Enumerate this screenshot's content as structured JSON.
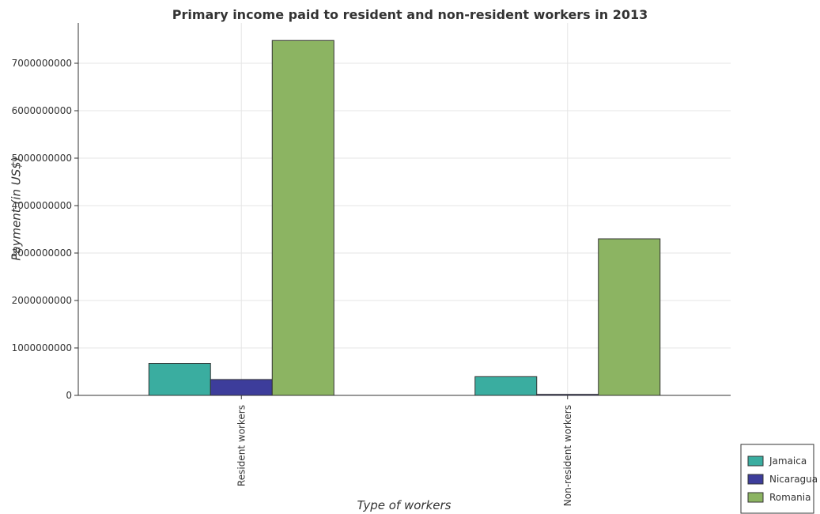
{
  "chart_data": {
    "type": "bar",
    "title": "Primary income paid to resident and non-resident workers in 2013",
    "xlabel": "Type of workers",
    "ylabel": "Payment (in US$)",
    "categories": [
      "Resident workers",
      "Non-resident workers"
    ],
    "series": [
      {
        "name": "Jamaica",
        "color": "#3aada0",
        "values": [
          675000000,
          395000000
        ]
      },
      {
        "name": "Nicaragua",
        "color": "#3d3d9b",
        "values": [
          335000000,
          22000000
        ]
      },
      {
        "name": "Romania",
        "color": "#8cb462",
        "values": [
          7480000000,
          3300000000
        ]
      }
    ],
    "yticks": [
      "0",
      "1000000000",
      "2000000000",
      "3000000000",
      "4000000000",
      "5000000000",
      "6000000000",
      "7000000000"
    ],
    "ylim": [
      0,
      7850000000
    ],
    "grid": true,
    "legend_position": "bottom-right"
  }
}
